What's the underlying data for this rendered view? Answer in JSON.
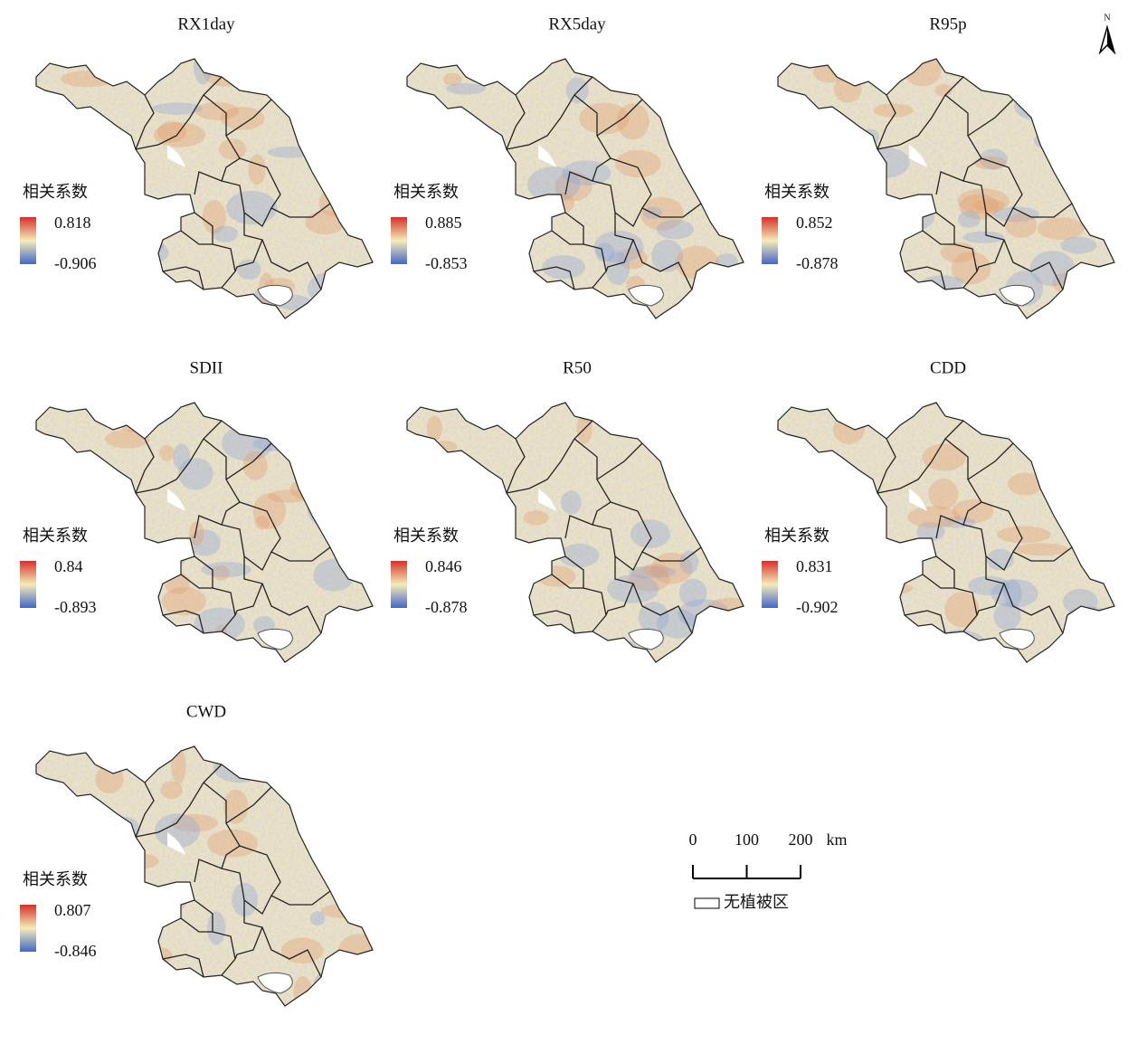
{
  "north": "N",
  "panels": [
    {
      "title": "RX1day",
      "legend_title": "相关系数",
      "max": 0.818,
      "min": -0.906
    },
    {
      "title": "RX5day",
      "legend_title": "相关系数",
      "max": 0.885,
      "min": -0.853
    },
    {
      "title": "R95p",
      "legend_title": "相关系数",
      "max": 0.852,
      "min": -0.878
    },
    {
      "title": "SDII",
      "legend_title": "相关系数",
      "max": 0.84,
      "min": -0.893
    },
    {
      "title": "R50",
      "legend_title": "相关系数",
      "max": 0.846,
      "min": -0.878
    },
    {
      "title": "CDD",
      "legend_title": "相关系数",
      "max": 0.831,
      "min": -0.902
    },
    {
      "title": "CWD",
      "legend_title": "相关系数",
      "max": 0.807,
      "min": -0.846
    }
  ],
  "scale_bar": {
    "ticks": [
      0,
      100,
      200
    ],
    "unit": "km"
  },
  "no_vegetation": "无植被区"
}
